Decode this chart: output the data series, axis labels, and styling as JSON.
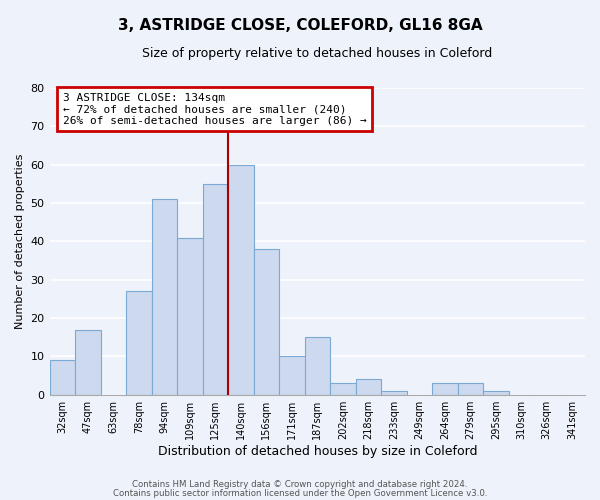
{
  "title": "3, ASTRIDGE CLOSE, COLEFORD, GL16 8GA",
  "subtitle": "Size of property relative to detached houses in Coleford",
  "xlabel": "Distribution of detached houses by size in Coleford",
  "ylabel": "Number of detached properties",
  "bar_labels": [
    "32sqm",
    "47sqm",
    "63sqm",
    "78sqm",
    "94sqm",
    "109sqm",
    "125sqm",
    "140sqm",
    "156sqm",
    "171sqm",
    "187sqm",
    "202sqm",
    "218sqm",
    "233sqm",
    "249sqm",
    "264sqm",
    "279sqm",
    "295sqm",
    "310sqm",
    "326sqm",
    "341sqm"
  ],
  "bar_values": [
    9,
    17,
    0,
    27,
    51,
    41,
    55,
    60,
    38,
    10,
    15,
    3,
    4,
    1,
    0,
    3,
    3,
    1,
    0,
    0,
    0
  ],
  "bar_color": "#ccd9ef",
  "bar_edge_color": "#7aaad4",
  "property_line_x": 7.0,
  "property_line_color": "#aa0000",
  "annotation_title": "3 ASTRIDGE CLOSE: 134sqm",
  "annotation_line1": "← 72% of detached houses are smaller (240)",
  "annotation_line2": "26% of semi-detached houses are larger (86) →",
  "annotation_box_edge_color": "#cc0000",
  "ylim": [
    0,
    80
  ],
  "yticks": [
    0,
    10,
    20,
    30,
    40,
    50,
    60,
    70,
    80
  ],
  "footer1": "Contains HM Land Registry data © Crown copyright and database right 2024.",
  "footer2": "Contains public sector information licensed under the Open Government Licence v3.0.",
  "background_color": "#eef2fa",
  "grid_color": "#ffffff"
}
